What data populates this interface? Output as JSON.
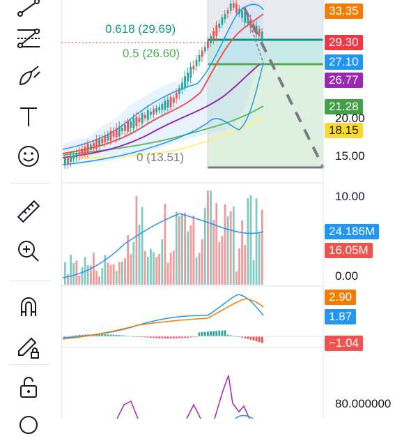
{
  "toolbar": {
    "tools": [
      {
        "name": "trend-line-tool-icon"
      },
      {
        "name": "fib-retracement-tool-icon"
      },
      {
        "name": "brush-tool-icon"
      },
      {
        "name": "text-tool-icon"
      },
      {
        "name": "emoji-tool-icon"
      },
      {
        "name": "ruler-tool-icon"
      },
      {
        "name": "zoom-in-tool-icon"
      },
      {
        "name": "magnet-tool-icon"
      },
      {
        "name": "lock-drawing-tool-icon"
      },
      {
        "name": "unlock-tool-icon"
      }
    ]
  },
  "price_pane": {
    "fib_levels": {
      "level_0618": "0.618 (29.69)",
      "level_05": "0.5 (26.60)",
      "level_0": "0 (13.51)"
    },
    "price_labels": [
      {
        "text": "33.35",
        "color": "#f57c00"
      },
      {
        "text": "29.30",
        "color": "#f23645"
      },
      {
        "text": "27.10",
        "color": "#2196f3"
      },
      {
        "text": "26.77",
        "color": "#9c27b0"
      },
      {
        "text": "21.28",
        "color": "#43a047"
      },
      {
        "text": "18.15",
        "color": "#fdd835"
      }
    ],
    "axis_ticks": [
      "20.00",
      "15.00",
      "10.00"
    ]
  },
  "volume_pane": {
    "labels": [
      {
        "text": "24.186M",
        "color": "#2196f3"
      },
      {
        "text": "16.05M",
        "color": "#ef5350"
      }
    ],
    "axis_ticks": [
      "0.00"
    ]
  },
  "macd_pane": {
    "labels": [
      {
        "text": "2.90",
        "color": "#f57c00"
      },
      {
        "text": "1.87",
        "color": "#2196f3"
      },
      {
        "text": "−1.04",
        "color": "#ef5350"
      }
    ]
  },
  "rsi_pane": {
    "axis_ticks": [
      "80.000000"
    ]
  },
  "chart_data": {
    "type": "candlestick",
    "panes": [
      "price",
      "volume",
      "macd",
      "rsi"
    ]
  },
  "colors": {
    "up": "#26a69a",
    "down": "#ef5350",
    "fib_line": "#089981",
    "fib_level_05": "#4caf50",
    "ma_red": "#ef5350",
    "ma_blue": "#2196f3",
    "ma_purple": "#9c27b0",
    "ma_green": "#66bb6a",
    "ma_yellow": "#ffee58"
  }
}
